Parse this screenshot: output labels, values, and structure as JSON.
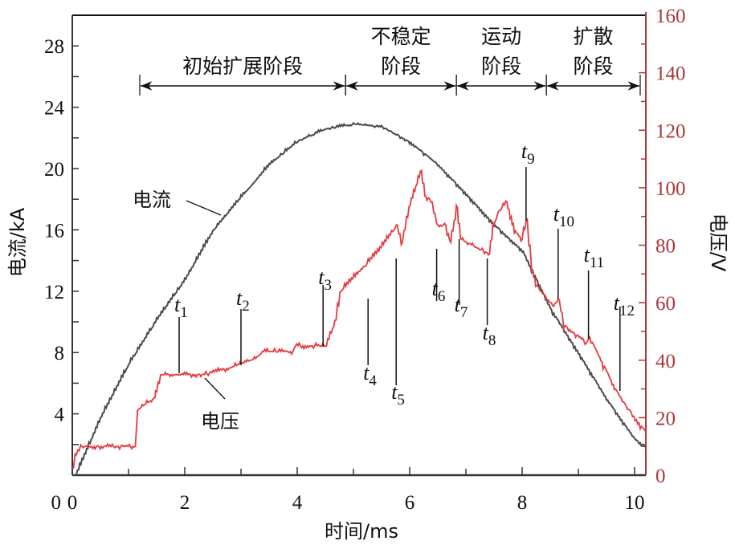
{
  "chart_data": {
    "type": "line",
    "xlabel": "时间/ms",
    "ylabel_left": "电流/kA",
    "ylabel_right": "电压/V",
    "xlim": [
      0,
      10.2
    ],
    "ylim_left": [
      0,
      30
    ],
    "ylim_right": [
      0,
      160
    ],
    "x_ticks": [
      0,
      2,
      4,
      6,
      8,
      10
    ],
    "y_ticks_left": [
      0,
      4,
      8,
      12,
      16,
      20,
      24,
      28
    ],
    "y_ticks_right": [
      0,
      20,
      40,
      60,
      80,
      100,
      120,
      140,
      160
    ],
    "grid": false,
    "colors": {
      "current": "#4a4a4a",
      "voltage": "#e53a3f",
      "right_axis": "#a8383a"
    },
    "series": [
      {
        "name": "电流",
        "axis": "left",
        "x": [
          0.05,
          0.5,
          1,
          1.5,
          2,
          2.5,
          3,
          3.5,
          4,
          4.5,
          5,
          5.5,
          6,
          6.5,
          7,
          7.5,
          8,
          8.5,
          9,
          9.5,
          10,
          10.2
        ],
        "y": [
          0,
          3.8,
          7.3,
          10.2,
          12.8,
          16,
          18.2,
          20.3,
          21.8,
          22.6,
          22.9,
          22.7,
          21.7,
          20.2,
          18.3,
          16.3,
          14.6,
          10.8,
          7.9,
          4.9,
          2.3,
          1.8
        ]
      },
      {
        "name": "电压",
        "axis": "right",
        "x": [
          0,
          0.05,
          0.15,
          1.1,
          1.16,
          1.45,
          1.48,
          1.57,
          2.33,
          2.81,
          3.24,
          3.38,
          3.9,
          3.95,
          4.5,
          4.67,
          4.76,
          5.05,
          5.43,
          5.76,
          5.85,
          5.99,
          6.19,
          6.27,
          6.38,
          6.48,
          6.62,
          6.71,
          6.83,
          6.9,
          7.29,
          7.4,
          7.48,
          7.57,
          7.71,
          7.86,
          7.98,
          8.07,
          8.17,
          8.24,
          8.52,
          8.64,
          8.74,
          9.12,
          9.18,
          9.36,
          9.64,
          9.83,
          10.1,
          10.2
        ],
        "y": [
          2.5,
          7,
          10,
          10,
          23,
          27,
          29,
          35,
          35,
          37.5,
          40.6,
          43,
          43,
          45,
          45,
          54,
          64,
          70,
          78,
          87,
          81,
          94,
          106,
          97,
          95,
          87,
          87,
          81,
          93,
          82,
          78,
          77,
          87,
          92,
          95,
          85,
          82,
          89,
          71,
          66,
          59,
          61,
          52,
          46,
          48,
          41,
          30,
          24,
          17,
          15
        ]
      }
    ],
    "annotations": {
      "series_labels": [
        {
          "text": "电流"
        },
        {
          "text": "电压"
        }
      ],
      "markers": [
        {
          "t": "t",
          "sub": "1",
          "x": 1.9
        },
        {
          "t": "t",
          "sub": "2",
          "x": 3.0
        },
        {
          "t": "t",
          "sub": "3",
          "x": 4.46
        },
        {
          "t": "t",
          "sub": "4",
          "x": 5.26
        },
        {
          "t": "t",
          "sub": "5",
          "x": 5.76
        },
        {
          "t": "t",
          "sub": "6",
          "x": 6.48
        },
        {
          "t": "t",
          "sub": "7",
          "x": 6.88
        },
        {
          "t": "t",
          "sub": "8",
          "x": 7.38
        },
        {
          "t": "t",
          "sub": "9",
          "x": 8.07
        },
        {
          "t": "t",
          "sub": "10",
          "x": 8.64
        },
        {
          "t": "t",
          "sub": "11",
          "x": 9.18
        },
        {
          "t": "t",
          "sub": "12",
          "x": 9.74
        }
      ],
      "phases": [
        {
          "label": [
            "初始扩展阶段"
          ],
          "from": 1.2,
          "to": 4.86
        },
        {
          "label": [
            "不稳定",
            "阶段"
          ],
          "from": 4.86,
          "to": 6.83
        },
        {
          "label": [
            "运动",
            "阶段"
          ],
          "from": 6.83,
          "to": 8.43
        },
        {
          "label": [
            "扩散",
            "阶段"
          ],
          "from": 8.43,
          "to": 10.1
        }
      ]
    }
  }
}
